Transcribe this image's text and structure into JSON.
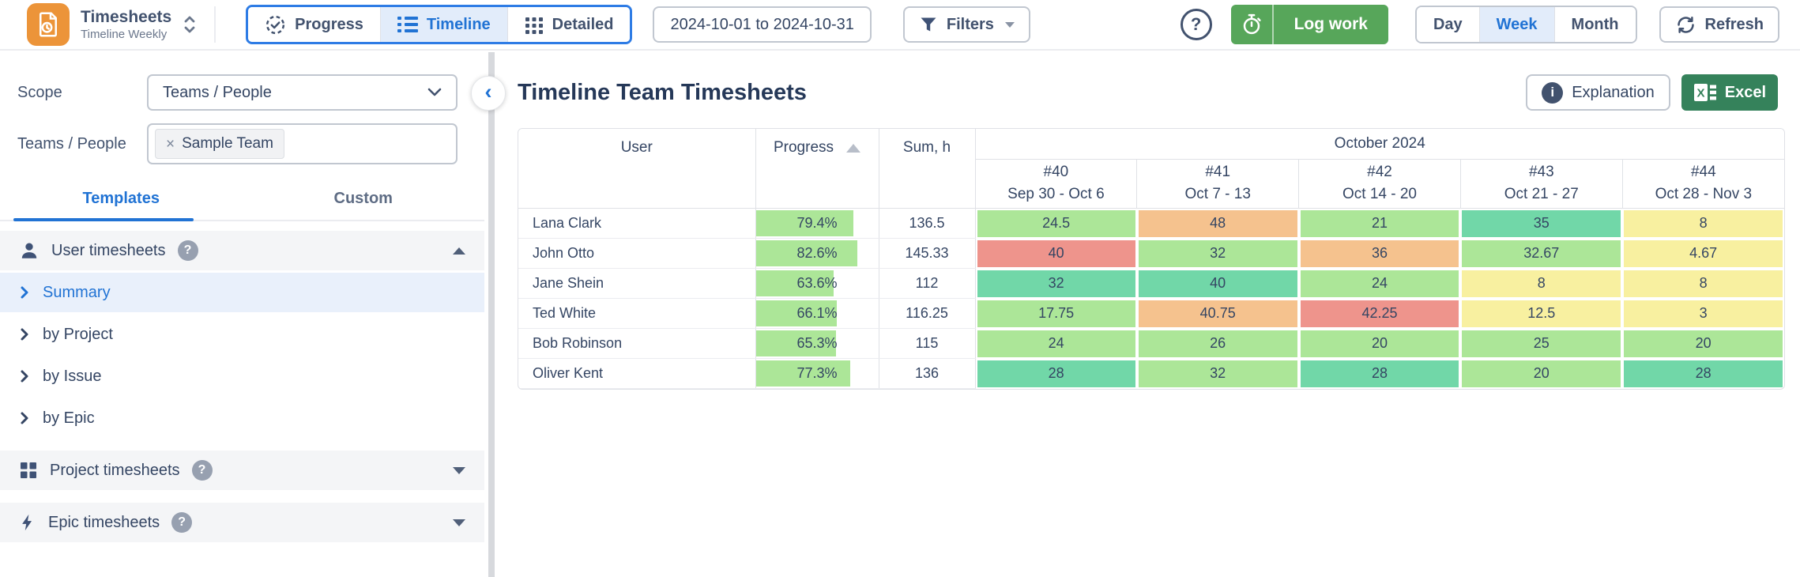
{
  "app": {
    "title": "Timesheets",
    "subtitle": "Timeline Weekly"
  },
  "glyphs": {
    "close": "×",
    "help": "?",
    "info": "i",
    "collapse": "‹"
  },
  "toolbar": {
    "progress_label": "Progress",
    "timeline_label": "Timeline",
    "detailed_label": "Detailed",
    "date_range": "2024-10-01 to 2024-10-31",
    "filters_label": "Filters",
    "log_work_label": "Log work",
    "day_label": "Day",
    "week_label": "Week",
    "month_label": "Month",
    "refresh_label": "Refresh"
  },
  "sidebar": {
    "scope_label": "Scope",
    "scope_value": "Teams / People",
    "teams_label": "Teams / People",
    "team_chip": "Sample Team",
    "tab_templates": "Templates",
    "tab_custom": "Custom",
    "user_section": "User timesheets",
    "project_section": "Project timesheets",
    "epic_section": "Epic timesheets",
    "items": [
      {
        "label": "Summary",
        "selected": true
      },
      {
        "label": "by Project",
        "selected": false
      },
      {
        "label": "by Issue",
        "selected": false
      },
      {
        "label": "by Epic",
        "selected": false
      }
    ]
  },
  "main": {
    "title": "Timeline Team Timesheets",
    "explanation_label": "Explanation",
    "excel_label": "Excel"
  },
  "table": {
    "columns": {
      "user": "User",
      "progress": "Progress",
      "sum": "Sum, h"
    },
    "month": "October 2024",
    "weeks": [
      {
        "num": "#40",
        "range": "Sep 30 - Oct 6"
      },
      {
        "num": "#41",
        "range": "Oct 7 - 13"
      },
      {
        "num": "#42",
        "range": "Oct 14 - 20"
      },
      {
        "num": "#43",
        "range": "Oct 21 - 27"
      },
      {
        "num": "#44",
        "range": "Oct 28 - Nov 3"
      }
    ],
    "rows": [
      {
        "user": "Lana Clark",
        "progress": "79.4%",
        "progress_pct": 79.4,
        "sum": "136.5",
        "cells": [
          {
            "v": "24.5",
            "c": "green"
          },
          {
            "v": "48",
            "c": "orange"
          },
          {
            "v": "21",
            "c": "green"
          },
          {
            "v": "35",
            "c": "teal"
          },
          {
            "v": "8",
            "c": "yellow"
          }
        ]
      },
      {
        "user": "John Otto",
        "progress": "82.6%",
        "progress_pct": 82.6,
        "sum": "145.33",
        "cells": [
          {
            "v": "40",
            "c": "red"
          },
          {
            "v": "32",
            "c": "green"
          },
          {
            "v": "36",
            "c": "orange"
          },
          {
            "v": "32.67",
            "c": "green"
          },
          {
            "v": "4.67",
            "c": "yellow"
          }
        ]
      },
      {
        "user": "Jane Shein",
        "progress": "63.6%",
        "progress_pct": 63.6,
        "sum": "112",
        "cells": [
          {
            "v": "32",
            "c": "teal"
          },
          {
            "v": "40",
            "c": "teal"
          },
          {
            "v": "24",
            "c": "green"
          },
          {
            "v": "8",
            "c": "yellow"
          },
          {
            "v": "8",
            "c": "yellow"
          }
        ]
      },
      {
        "user": "Ted White",
        "progress": "66.1%",
        "progress_pct": 66.1,
        "sum": "116.25",
        "cells": [
          {
            "v": "17.75",
            "c": "green"
          },
          {
            "v": "40.75",
            "c": "orange"
          },
          {
            "v": "42.25",
            "c": "red"
          },
          {
            "v": "12.5",
            "c": "yellow"
          },
          {
            "v": "3",
            "c": "yellow"
          }
        ]
      },
      {
        "user": "Bob Robinson",
        "progress": "65.3%",
        "progress_pct": 65.3,
        "sum": "115",
        "cells": [
          {
            "v": "24",
            "c": "green"
          },
          {
            "v": "26",
            "c": "green"
          },
          {
            "v": "20",
            "c": "green"
          },
          {
            "v": "25",
            "c": "green"
          },
          {
            "v": "20",
            "c": "green"
          }
        ]
      },
      {
        "user": "Oliver Kent",
        "progress": "77.3%",
        "progress_pct": 77.3,
        "sum": "136",
        "cells": [
          {
            "v": "28",
            "c": "teal"
          },
          {
            "v": "32",
            "c": "green"
          },
          {
            "v": "28",
            "c": "teal"
          },
          {
            "v": "20",
            "c": "green"
          },
          {
            "v": "28",
            "c": "teal"
          }
        ]
      }
    ]
  },
  "colors": {
    "green": "#ACE698",
    "teal": "#71D7A8",
    "orange": "#F5C28E",
    "red": "#EE948C",
    "yellow": "#F8F0A0",
    "accent_blue": "#2173D4",
    "accent_border": "#2E7CE5",
    "selection_bg": "#E2ECFA",
    "log_work_green": "#57A65A",
    "excel_green": "#35825B",
    "app_orange": "#EC9439"
  }
}
